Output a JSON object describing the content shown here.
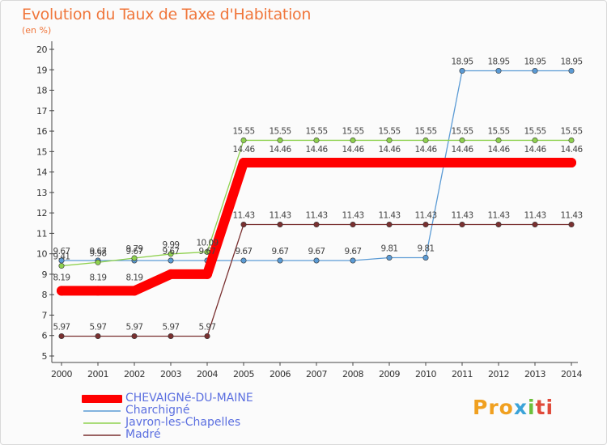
{
  "header": {
    "title": "Evolution du Taux de Taxe d'Habitation",
    "subtitle": "(en %)"
  },
  "logo": {
    "text": "Proxiti",
    "parts": [
      "Pro",
      "x",
      "i",
      "ti"
    ]
  },
  "chart_data": {
    "type": "line",
    "title": "Evolution du Taux de Taxe d'Habitation",
    "ylabel": "(en %)",
    "xlabel": "",
    "ylim": [
      5,
      20
    ],
    "yticks": [
      5,
      6,
      7,
      8,
      9,
      10,
      11,
      12,
      13,
      14,
      15,
      16,
      17,
      18,
      19,
      20
    ],
    "grid": false,
    "legend_position": "bottom-left",
    "x": [
      "2000",
      "2001",
      "2002",
      "2003",
      "2004",
      "2005",
      "2006",
      "2007",
      "2008",
      "2009",
      "2010",
      "2011",
      "2012",
      "2013",
      "2014"
    ],
    "series": [
      {
        "name": "CHEVAIGNé-DU-MAINE",
        "color": "#ff0000",
        "emphasis": true,
        "values": [
          8.19,
          8.19,
          8.19,
          9.0,
          9.0,
          14.46,
          14.46,
          14.46,
          14.46,
          14.46,
          14.46,
          14.46,
          14.46,
          14.46,
          14.46
        ],
        "labels": [
          "8.19",
          "8.19",
          "8.19",
          "",
          "",
          "14.46",
          "14.46",
          "14.46",
          "14.46",
          "14.46",
          "14.46",
          "14.46",
          "14.46",
          "14.46",
          "14.46"
        ]
      },
      {
        "name": "Charchigné",
        "color": "#5b9bd5",
        "emphasis": false,
        "values": [
          9.67,
          9.67,
          9.67,
          9.67,
          9.67,
          9.67,
          9.67,
          9.67,
          9.67,
          9.81,
          9.81,
          18.95,
          18.95,
          18.95,
          18.95
        ],
        "labels": [
          "9.67",
          "9.67",
          "9.67",
          "9.67",
          "9.67",
          "9.67",
          "9.67",
          "9.67",
          "9.67",
          "9.81",
          "9.81",
          "18.95",
          "18.95",
          "18.95",
          "18.95"
        ]
      },
      {
        "name": "Javron-les-Chapelles",
        "color": "#8fd14f",
        "emphasis": false,
        "values": [
          9.41,
          9.58,
          9.79,
          9.99,
          10.09,
          15.55,
          15.55,
          15.55,
          15.55,
          15.55,
          15.55,
          15.55,
          15.55,
          15.55,
          15.55
        ],
        "labels": [
          "9.41",
          "9.58",
          "9.79",
          "9.99",
          "10.09",
          "15.55",
          "15.55",
          "15.55",
          "15.55",
          "15.55",
          "15.55",
          "15.55",
          "15.55",
          "15.55",
          "15.55"
        ]
      },
      {
        "name": "Madré",
        "color": "#7a3030",
        "emphasis": false,
        "values": [
          5.97,
          5.97,
          5.97,
          5.97,
          5.97,
          11.43,
          11.43,
          11.43,
          11.43,
          11.43,
          11.43,
          11.43,
          11.43,
          11.43,
          11.43
        ],
        "labels": [
          "5.97",
          "5.97",
          "5.97",
          "5.97",
          "5.97",
          "11.43",
          "11.43",
          "11.43",
          "11.43",
          "11.43",
          "11.43",
          "11.43",
          "11.43",
          "11.43",
          "11.43"
        ]
      }
    ]
  }
}
